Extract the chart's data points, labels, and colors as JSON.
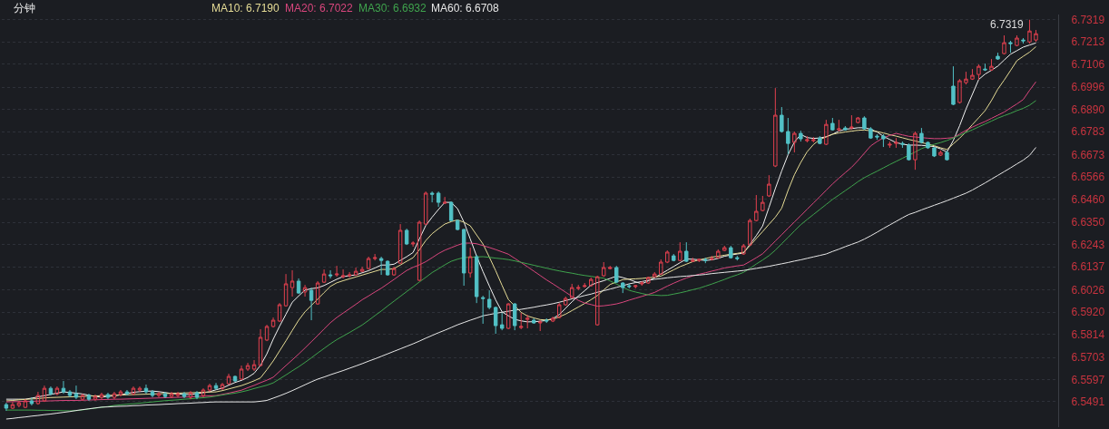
{
  "chart_data": {
    "type": "candlestick",
    "title": "分钟",
    "categories": [
      null,
      null,
      null,
      null,
      null,
      null,
      null,
      null,
      null,
      null,
      null,
      null,
      null,
      null,
      null,
      null,
      null,
      null,
      null,
      null,
      null,
      null,
      null,
      null,
      null,
      null,
      null,
      null,
      null,
      null,
      null,
      null,
      null,
      null,
      null,
      null,
      null,
      null,
      null,
      null,
      null,
      null,
      null,
      null,
      null,
      null,
      null,
      null,
      null,
      null,
      null,
      null,
      null,
      null,
      null,
      null,
      null,
      null,
      null,
      null,
      null,
      null,
      null,
      null,
      null,
      null,
      null,
      null,
      null,
      null,
      null,
      null,
      null,
      null,
      null,
      null,
      null,
      null,
      null,
      null,
      null,
      null,
      null,
      null,
      null,
      null,
      null,
      null,
      null,
      null,
      null,
      null,
      null,
      null,
      null,
      null,
      null,
      null,
      null,
      null,
      null,
      null,
      null,
      null,
      null,
      null,
      null,
      null,
      null,
      null,
      null,
      null,
      null,
      null,
      null,
      null,
      null,
      null,
      null,
      null,
      null,
      null,
      null,
      null,
      null,
      null,
      null,
      null,
      null,
      null,
      null,
      null,
      null,
      null,
      null,
      null,
      null,
      null,
      null,
      null,
      null,
      null,
      null,
      null,
      null,
      null,
      null,
      null,
      null,
      null,
      null,
      null,
      null,
      null,
      null,
      null,
      null,
      null,
      null,
      null,
      null,
      null,
      null
    ],
    "ohlc": [
      [
        6.5477,
        6.5486,
        6.5447,
        6.546
      ],
      [
        6.546,
        6.549,
        6.5456,
        6.5477
      ],
      [
        6.5473,
        6.5495,
        6.5464,
        6.5486
      ],
      [
        6.5464,
        6.5503,
        6.546,
        6.5495
      ],
      [
        6.5495,
        6.5512,
        6.5473,
        6.5482
      ],
      [
        6.5482,
        6.5538,
        6.5477,
        6.5521
      ],
      [
        6.5495,
        6.5568,
        6.549,
        6.5555
      ],
      [
        6.5555,
        6.5564,
        6.5521,
        6.5529
      ],
      [
        6.5529,
        6.5564,
        6.5521,
        6.5555
      ],
      [
        6.5555,
        6.559,
        6.5529,
        6.5538
      ],
      [
        6.5538,
        6.5547,
        6.5512,
        6.5521
      ],
      [
        6.5529,
        6.5568,
        6.5503,
        6.5512
      ],
      [
        6.5503,
        6.5529,
        6.5495,
        6.5521
      ],
      [
        6.5521,
        6.5529,
        6.5495,
        6.5503
      ],
      [
        6.5503,
        6.5525,
        6.5495,
        6.5516
      ],
      [
        6.5512,
        6.5534,
        6.5503,
        6.5525
      ],
      [
        6.5525,
        6.5534,
        6.5503,
        6.5512
      ],
      [
        6.5512,
        6.5538,
        6.5503,
        6.5529
      ],
      [
        6.5525,
        6.5547,
        6.5516,
        6.5538
      ],
      [
        6.5538,
        6.5547,
        6.5521,
        6.5529
      ],
      [
        6.5529,
        6.5564,
        6.5521,
        6.5555
      ],
      [
        6.5547,
        6.5564,
        6.5538,
        6.5555
      ],
      [
        6.5555,
        6.5573,
        6.5529,
        6.5538
      ],
      [
        6.5538,
        6.5547,
        6.5512,
        6.5521
      ],
      [
        6.5521,
        6.5538,
        6.5512,
        6.5529
      ],
      [
        6.5529,
        6.5538,
        6.5508,
        6.5516
      ],
      [
        6.5516,
        6.5538,
        6.5508,
        6.5529
      ],
      [
        6.5521,
        6.5538,
        6.5512,
        6.5529
      ],
      [
        6.5529,
        6.5538,
        6.5508,
        6.5516
      ],
      [
        6.5512,
        6.5542,
        6.5503,
        6.5534
      ],
      [
        6.5534,
        6.5542,
        6.5503,
        6.5512
      ],
      [
        6.5521,
        6.5555,
        6.5512,
        6.5547
      ],
      [
        6.5547,
        6.5577,
        6.5538,
        6.5568
      ],
      [
        6.5568,
        6.5581,
        6.5547,
        6.5555
      ],
      [
        6.5555,
        6.5581,
        6.5547,
        6.5573
      ],
      [
        6.5577,
        6.5625,
        6.5573,
        6.5612
      ],
      [
        6.5612,
        6.5616,
        6.5586,
        6.559
      ],
      [
        6.5599,
        6.5664,
        6.5595,
        6.5647
      ],
      [
        6.5647,
        6.5677,
        6.5638,
        6.5664
      ],
      [
        6.5647,
        6.569,
        6.5638,
        6.5668
      ],
      [
        6.5664,
        6.5838,
        6.566,
        6.5799
      ],
      [
        6.5786,
        6.5859,
        6.5781,
        6.5851
      ],
      [
        6.5851,
        6.5894,
        6.5846,
        6.5881
      ],
      [
        6.5877,
        6.5963,
        6.5872,
        6.5955
      ],
      [
        6.595,
        6.6102,
        6.5946,
        6.6055
      ],
      [
        6.6037,
        6.612,
        6.5994,
        6.6068
      ],
      [
        6.6068,
        6.6081,
        6.6007,
        6.6011
      ],
      [
        6.6016,
        6.605,
        6.5994,
        6.6037
      ],
      [
        6.6024,
        6.6037,
        6.5881,
        6.5976
      ],
      [
        6.5959,
        6.6068,
        6.5955,
        6.6059
      ],
      [
        6.6063,
        6.6124,
        6.6059,
        6.6102
      ],
      [
        6.6098,
        6.612,
        6.6081,
        6.6094
      ],
      [
        6.6098,
        6.6141,
        6.6089,
        6.6102
      ],
      [
        6.6089,
        6.6124,
        6.6081,
        6.6094
      ],
      [
        6.6094,
        6.6111,
        6.6085,
        6.6098
      ],
      [
        6.6098,
        6.6133,
        6.6094,
        6.6115
      ],
      [
        6.6115,
        6.6137,
        6.6111,
        6.6124
      ],
      [
        6.6128,
        6.6185,
        6.6124,
        6.6176
      ],
      [
        6.6176,
        6.6198,
        6.6167,
        6.618
      ],
      [
        6.6176,
        6.6185,
        6.6098,
        6.6167
      ],
      [
        6.6163,
        6.6167,
        6.6094,
        6.6098
      ],
      [
        6.6098,
        6.6137,
        6.6094,
        6.6128
      ],
      [
        6.6154,
        6.6341,
        6.615,
        6.6311
      ],
      [
        6.6311,
        6.6319,
        6.6241,
        6.6246
      ],
      [
        6.6246,
        6.6259,
        6.6233,
        6.625
      ],
      [
        6.6072,
        6.6358,
        6.6068,
        6.635
      ],
      [
        6.6341,
        6.6497,
        6.6337,
        6.6489
      ],
      [
        6.6489,
        6.6497,
        6.6445,
        6.6484
      ],
      [
        6.6489,
        6.6497,
        6.6423,
        6.6445
      ],
      [
        6.6441,
        6.6471,
        6.6437,
        6.6445
      ],
      [
        6.6445,
        6.645,
        6.6354,
        6.6358
      ],
      [
        6.6358,
        6.6363,
        6.6311,
        6.6315
      ],
      [
        6.6315,
        6.6319,
        6.6046,
        6.6107
      ],
      [
        6.6107,
        6.6228,
        6.6085,
        6.6185
      ],
      [
        6.6185,
        6.6194,
        6.5963,
        6.5994
      ],
      [
        6.5989,
        6.5998,
        6.5864,
        6.5985
      ],
      [
        6.5981,
        6.6024,
        6.5933,
        6.5942
      ],
      [
        6.5942,
        6.5946,
        6.5816,
        6.5855
      ],
      [
        6.5859,
        6.5916,
        6.5833,
        6.5842
      ],
      [
        6.5842,
        6.5963,
        6.5838,
        6.5959
      ],
      [
        6.5959,
        6.5963,
        6.5833,
        6.5855
      ],
      [
        6.5846,
        6.5916,
        6.5838,
        6.5851
      ],
      [
        6.5885,
        6.5907,
        6.5842,
        6.589
      ],
      [
        6.5881,
        6.589,
        6.5864,
        6.5868
      ],
      [
        6.5868,
        6.5881,
        6.5829,
        6.5872
      ],
      [
        6.5881,
        6.589,
        6.5868,
        6.5877
      ],
      [
        6.5877,
        6.5898,
        6.5872,
        6.589
      ],
      [
        6.5894,
        6.5963,
        6.589,
        6.5955
      ],
      [
        6.5955,
        6.5994,
        6.595,
        6.5985
      ],
      [
        6.5989,
        6.6055,
        6.5985,
        6.6037
      ],
      [
        6.6033,
        6.605,
        6.6024,
        6.6037
      ],
      [
        6.6042,
        6.6059,
        6.6037,
        6.6046
      ],
      [
        6.6046,
        6.6085,
        6.6042,
        6.6076
      ],
      [
        6.5859,
        6.6094,
        6.5855,
        6.6089
      ],
      [
        6.6094,
        6.6159,
        6.6089,
        6.6133
      ],
      [
        6.6128,
        6.6141,
        6.6124,
        6.6133
      ],
      [
        6.6133,
        6.6141,
        6.6059,
        6.6063
      ],
      [
        6.6059,
        6.6063,
        6.6011,
        6.6037
      ],
      [
        6.6046,
        6.6055,
        6.6033,
        6.6042
      ],
      [
        6.6042,
        6.605,
        6.6033,
        6.6046
      ],
      [
        6.6055,
        6.6068,
        6.6046,
        6.6059
      ],
      [
        6.6059,
        6.6089,
        6.6055,
        6.6085
      ],
      [
        6.6089,
        6.6111,
        6.6085,
        6.6102
      ],
      [
        6.6102,
        6.6172,
        6.6098,
        6.6159
      ],
      [
        6.6159,
        6.6215,
        6.6154,
        6.6207
      ],
      [
        6.6189,
        6.6198,
        6.6163,
        6.6167
      ],
      [
        6.6167,
        6.6254,
        6.6163,
        6.6211
      ],
      [
        6.6211,
        6.6254,
        6.6159,
        6.6163
      ],
      [
        6.6163,
        6.618,
        6.6159,
        6.6167
      ],
      [
        6.6167,
        6.6176,
        6.6159,
        6.6172
      ],
      [
        6.6172,
        6.618,
        6.6154,
        6.6167
      ],
      [
        6.6172,
        6.6189,
        6.6167,
        6.6176
      ],
      [
        6.618,
        6.622,
        6.6176,
        6.6211
      ],
      [
        6.6215,
        6.6237,
        6.6211,
        6.6228
      ],
      [
        6.6228,
        6.6237,
        6.6176,
        6.618
      ],
      [
        6.618,
        6.6189,
        6.6167,
        6.6176
      ],
      [
        6.6198,
        6.6246,
        6.6194,
        6.6237
      ],
      [
        6.6241,
        6.6367,
        6.6237,
        6.6358
      ],
      [
        6.6358,
        6.648,
        6.6354,
        6.6402
      ],
      [
        6.6406,
        6.6476,
        6.6402,
        6.6445
      ],
      [
        6.6476,
        6.6575,
        6.6471,
        6.6532
      ],
      [
        6.6619,
        6.6992,
        6.6614,
        6.6862
      ],
      [
        6.6862,
        6.6901,
        6.6779,
        6.6784
      ],
      [
        6.6784,
        6.6849,
        6.6675,
        6.6727
      ],
      [
        6.6732,
        6.6784,
        6.6684,
        6.6775
      ],
      [
        6.6775,
        6.6788,
        6.6736,
        6.6749
      ],
      [
        6.674,
        6.6762,
        6.6732,
        6.6745
      ],
      [
        6.674,
        6.6758,
        6.6732,
        6.6745
      ],
      [
        6.6753,
        6.6762,
        6.6723,
        6.6727
      ],
      [
        6.6723,
        6.684,
        6.6719,
        6.6818
      ],
      [
        6.6823,
        6.6849,
        6.6788,
        6.6792
      ],
      [
        6.6792,
        6.684,
        6.6784,
        6.6797
      ],
      [
        6.6801,
        6.681,
        6.6788,
        6.6792
      ],
      [
        6.6801,
        6.6862,
        6.6792,
        6.6805
      ],
      [
        6.6827,
        6.6853,
        6.6823,
        6.6849
      ],
      [
        6.6849,
        6.6857,
        6.6792,
        6.6797
      ],
      [
        6.6797,
        6.6805,
        6.6749,
        6.6753
      ],
      [
        6.6762,
        6.6771,
        6.6745,
        6.6758
      ],
      [
        6.6762,
        6.6771,
        6.671,
        6.6749
      ],
      [
        6.6719,
        6.6736,
        6.6706,
        6.6723
      ],
      [
        6.6727,
        6.6753,
        6.6706,
        6.6732
      ],
      [
        6.6727,
        6.6736,
        6.6706,
        6.6723
      ],
      [
        6.6719,
        6.6727,
        6.6645,
        6.6649
      ],
      [
        6.6649,
        6.6784,
        6.6601,
        6.6775
      ],
      [
        6.6775,
        6.6801,
        6.6727,
        6.6732
      ],
      [
        6.6732,
        6.6736,
        6.6701,
        6.6706
      ],
      [
        6.6706,
        6.671,
        6.6662,
        6.6667
      ],
      [
        6.6671,
        6.6693,
        6.6667,
        6.6684
      ],
      [
        6.6684,
        6.6693,
        6.6645,
        6.6649
      ],
      [
        6.7001,
        6.7096,
        6.691,
        6.6914
      ],
      [
        6.6923,
        6.7035,
        6.6918,
        6.7027
      ],
      [
        6.7018,
        6.707,
        6.7009,
        6.7035
      ],
      [
        6.7035,
        6.7083,
        6.7031,
        6.7053
      ],
      [
        6.7057,
        6.7105,
        6.7031,
        6.7096
      ],
      [
        6.7083,
        6.7109,
        6.7074,
        6.7079
      ],
      [
        6.7079,
        6.7131,
        6.7074,
        6.7096
      ],
      [
        6.7144,
        6.7161,
        6.7127,
        6.7131
      ],
      [
        6.7157,
        6.7244,
        6.7153,
        6.7209
      ],
      [
        6.7209,
        6.7218,
        6.7161,
        6.7205
      ],
      [
        6.7196,
        6.7244,
        6.7192,
        6.7231
      ],
      [
        6.7222,
        6.7231,
        6.7205,
        6.7218
      ],
      [
        6.7213,
        6.7319,
        6.7205,
        6.7265
      ],
      [
        6.7222,
        6.727,
        6.7213,
        6.7252
      ]
    ],
    "colors": [
      "#52c1c6",
      "#e2404f",
      "#e2404f",
      "#e2404f",
      "#52c1c6",
      "#e2404f",
      "#e2404f",
      "#52c1c6",
      "#e2404f",
      "#52c1c6",
      "#52c1c6",
      "#52c1c6",
      "#e2404f",
      "#52c1c6",
      "#e2404f",
      "#e2404f",
      "#52c1c6",
      "#e2404f",
      "#e2404f",
      "#52c1c6",
      "#e2404f",
      "#e2404f",
      "#52c1c6",
      "#52c1c6",
      "#e2404f",
      "#52c1c6",
      "#e2404f",
      "#e2404f",
      "#52c1c6",
      "#e2404f",
      "#52c1c6",
      "#e2404f",
      "#e2404f",
      "#52c1c6",
      "#e2404f",
      "#e2404f",
      "#52c1c6",
      "#e2404f",
      "#e2404f",
      "#e2404f",
      "#e2404f",
      "#e2404f",
      "#e2404f",
      "#e2404f",
      "#e2404f",
      "#e2404f",
      "#52c1c6",
      "#e2404f",
      "#52c1c6",
      "#e2404f",
      "#e2404f",
      "#52c1c6",
      "#e2404f",
      "#e2404f",
      "#e2404f",
      "#e2404f",
      "#e2404f",
      "#e2404f",
      "#e2404f",
      "#52c1c6",
      "#52c1c6",
      "#e2404f",
      "#e2404f",
      "#52c1c6",
      "#e2404f",
      "#e2404f",
      "#e2404f",
      "#52c1c6",
      "#52c1c6",
      "#e2404f",
      "#52c1c6",
      "#52c1c6",
      "#52c1c6",
      "#e2404f",
      "#52c1c6",
      "#52c1c6",
      "#52c1c6",
      "#52c1c6",
      "#52c1c6",
      "#e2404f",
      "#52c1c6",
      "#e2404f",
      "#e2404f",
      "#52c1c6",
      "#e2404f",
      "#52c1c6",
      "#e2404f",
      "#e2404f",
      "#e2404f",
      "#e2404f",
      "#e2404f",
      "#e2404f",
      "#e2404f",
      "#e2404f",
      "#e2404f",
      "#e2404f",
      "#52c1c6",
      "#52c1c6",
      "#52c1c6",
      "#e2404f",
      "#e2404f",
      "#e2404f",
      "#e2404f",
      "#e2404f",
      "#e2404f",
      "#52c1c6",
      "#e2404f",
      "#52c1c6",
      "#e2404f",
      "#e2404f",
      "#52c1c6",
      "#e2404f",
      "#e2404f",
      "#e2404f",
      "#52c1c6",
      "#52c1c6",
      "#e2404f",
      "#e2404f",
      "#e2404f",
      "#e2404f",
      "#e2404f",
      "#e2404f",
      "#52c1c6",
      "#52c1c6",
      "#e2404f",
      "#52c1c6",
      "#e2404f",
      "#e2404f",
      "#52c1c6",
      "#e2404f",
      "#52c1c6",
      "#e2404f",
      "#52c1c6",
      "#e2404f",
      "#e2404f",
      "#52c1c6",
      "#52c1c6",
      "#52c1c6",
      "#52c1c6",
      "#e2404f",
      "#e2404f",
      "#52c1c6",
      "#52c1c6",
      "#e2404f",
      "#52c1c6",
      "#52c1c6",
      "#52c1c6",
      "#e2404f",
      "#52c1c6",
      "#52c1c6",
      "#e2404f",
      "#e2404f",
      "#e2404f",
      "#e2404f",
      "#52c1c6",
      "#e2404f",
      "#52c1c6",
      "#e2404f",
      "#52c1c6",
      "#e2404f",
      "#52c1c6",
      "#e2404f",
      "#e2404f"
    ],
    "series": [
      {
        "type": "line",
        "color": "#f2f2f2",
        "values": [
          6.5503,
          6.5503,
          6.5503,
          6.5503,
          6.5508,
          6.5514,
          6.552,
          6.5526,
          6.5532,
          6.5538,
          6.5535,
          6.5532,
          6.5528,
          6.5522,
          6.5516,
          6.5513,
          6.5516,
          6.5519,
          6.5524,
          6.553,
          6.5536,
          6.5539,
          6.5541,
          6.5542,
          6.5539,
          6.5535,
          6.553,
          6.5528,
          6.5526,
          6.5525,
          6.553,
          6.5534,
          6.5539,
          6.5548,
          6.5556,
          6.557,
          6.5583,
          6.5593,
          6.5607,
          6.5627,
          6.5665,
          6.572,
          6.579,
          6.5852,
          6.5909,
          6.5967,
          6.5997,
          6.6025,
          6.6032,
          6.6036,
          6.6047,
          6.6062,
          6.6077,
          6.609,
          6.6094,
          6.6098,
          6.6108,
          6.6118,
          6.6131,
          6.6145,
          6.6145,
          6.6149,
          6.6167,
          6.6185,
          6.6205,
          6.627,
          6.6334,
          6.6374,
          6.6411,
          6.6445,
          6.6445,
          6.6415,
          6.6351,
          6.627,
          6.6188,
          6.6114,
          6.6045,
          6.5978,
          6.5921,
          6.5902,
          6.5885,
          6.5878,
          6.5873,
          6.5874,
          6.5876,
          6.588,
          6.5889,
          6.5908,
          6.5938,
          6.5969,
          6.5997,
          6.6022,
          6.6049,
          6.6061,
          6.607,
          6.6081,
          6.6092,
          6.6085,
          6.6076,
          6.6065,
          6.6055,
          6.6069,
          6.6084,
          6.6102,
          6.612,
          6.6138,
          6.6156,
          6.6174,
          6.6173,
          6.617,
          6.6167,
          6.617,
          6.6177,
          6.6187,
          6.6193,
          6.6198,
          6.6202,
          6.6244,
          6.6286,
          6.6332,
          6.6421,
          6.6511,
          6.6595,
          6.6673,
          6.6734,
          6.677,
          6.6755,
          6.6751,
          6.6753,
          6.6759,
          6.6771,
          6.6786,
          6.6795,
          6.6798,
          6.6802,
          6.6802,
          6.6795,
          6.6782,
          6.6761,
          6.6746,
          6.6731,
          6.6724,
          6.6719,
          6.6719,
          6.6718,
          6.6715,
          6.6712,
          6.6701,
          6.6686,
          6.6741,
          6.6812,
          6.6892,
          6.6962,
          6.7033,
          6.7059,
          6.7077,
          6.7097,
          6.7126,
          6.7154,
          6.7171,
          6.7188,
          6.7198,
          6.7208
        ]
      },
      {
        "type": "line",
        "name": "MA10: 6.7190",
        "color": "#e6dc96",
        "values": [
          6.5495,
          6.5497,
          6.55,
          6.5502,
          6.5504,
          6.5506,
          6.5509,
          6.5511,
          6.5512,
          6.5513,
          6.5514,
          6.5515,
          6.5516,
          6.5518,
          6.5519,
          6.5519,
          6.5521,
          6.5522,
          6.5523,
          6.5524,
          6.5525,
          6.5526,
          6.5527,
          6.5528,
          6.5529,
          6.553,
          6.5531,
          6.5532,
          6.5533,
          6.5534,
          6.5535,
          6.5536,
          6.5537,
          6.5538,
          6.5544,
          6.5552,
          6.556,
          6.5568,
          6.5579,
          6.5591,
          6.5605,
          6.5644,
          6.5686,
          6.5734,
          6.5782,
          6.5832,
          6.5881,
          6.5921,
          6.5952,
          6.5982,
          6.6013,
          6.6043,
          6.606,
          6.607,
          6.6079,
          6.6088,
          6.6097,
          6.6106,
          6.6115,
          6.6124,
          6.6124,
          6.6128,
          6.6145,
          6.6163,
          6.618,
          6.6218,
          6.6262,
          6.6295,
          6.6319,
          6.6341,
          6.6353,
          6.6361,
          6.635,
          6.6333,
          6.6289,
          6.6246,
          6.6183,
          6.6118,
          6.6048,
          6.598,
          6.5949,
          6.5919,
          6.5901,
          6.5892,
          6.5884,
          6.5882,
          6.5885,
          6.5897,
          6.591,
          6.5927,
          6.5944,
          6.5961,
          6.5979,
          6.5999,
          6.6026,
          6.6052,
          6.6064,
          6.6075,
          6.6078,
          6.6079,
          6.6081,
          6.6084,
          6.6087,
          6.6092,
          6.6107,
          6.6122,
          6.6137,
          6.6149,
          6.6161,
          6.617,
          6.6176,
          6.6183,
          6.6187,
          6.6192,
          6.6197,
          6.6201,
          6.6206,
          6.6237,
          6.6272,
          6.6305,
          6.634,
          6.6374,
          6.6417,
          6.6502,
          6.6577,
          6.6636,
          6.6687,
          6.6722,
          6.6746,
          6.6758,
          6.6771,
          6.6777,
          6.6782,
          6.6786,
          6.679,
          6.6791,
          6.6788,
          6.6784,
          6.6777,
          6.6769,
          6.6762,
          6.6754,
          6.6746,
          6.6739,
          6.6731,
          6.6724,
          6.6716,
          6.6706,
          6.6698,
          6.6725,
          6.6752,
          6.6783,
          6.6817,
          6.685,
          6.6884,
          6.6932,
          6.6987,
          6.703,
          6.7076,
          6.7123,
          6.7144,
          6.7164,
          6.719
        ]
      },
      {
        "type": "line",
        "name": "MA20: 6.7022",
        "color": "#d9467d",
        "values": [
          6.549,
          6.5491,
          6.5492,
          6.5493,
          6.5493,
          6.5494,
          6.5494,
          6.5495,
          6.5496,
          6.5497,
          6.5497,
          6.5497,
          6.5498,
          6.5499,
          6.55,
          6.5501,
          6.5502,
          6.5503,
          6.5503,
          6.5504,
          6.5505,
          6.5506,
          6.5507,
          6.5508,
          6.5509,
          6.551,
          6.5511,
          6.5512,
          6.5513,
          6.5514,
          6.5516,
          6.5517,
          6.5519,
          6.552,
          6.5526,
          6.5532,
          6.5539,
          6.5546,
          6.5558,
          6.5569,
          6.5582,
          6.5594,
          6.5608,
          6.5636,
          6.5664,
          6.5691,
          6.5719,
          6.5748,
          6.5778,
          6.5808,
          6.5839,
          6.5869,
          6.5894,
          6.5915,
          6.5936,
          6.5957,
          6.5979,
          6.5997,
          6.6016,
          6.6034,
          6.6055,
          6.6076,
          6.6098,
          6.6119,
          6.6134,
          6.6146,
          6.6161,
          6.618,
          6.62,
          6.6216,
          6.6228,
          6.624,
          6.625,
          6.625,
          6.6247,
          6.6238,
          6.6229,
          6.6219,
          6.6208,
          6.6197,
          6.6177,
          6.6157,
          6.6137,
          6.6116,
          6.6095,
          6.6074,
          6.6055,
          6.6035,
          6.6015,
          6.5995,
          6.5976,
          6.5963,
          6.5956,
          6.5948,
          6.595,
          6.5954,
          6.5959,
          6.5967,
          6.5977,
          6.5986,
          6.5995,
          6.6004,
          6.6014,
          6.6029,
          6.6044,
          6.6058,
          6.6071,
          6.6083,
          6.6093,
          6.6101,
          6.6108,
          6.6116,
          6.6123,
          6.6131,
          6.6136,
          6.6141,
          6.6145,
          6.6162,
          6.618,
          6.6199,
          6.6229,
          6.626,
          6.629,
          6.6321,
          6.6351,
          6.6381,
          6.6412,
          6.6442,
          6.6472,
          6.6503,
          6.6533,
          6.6561,
          6.6587,
          6.6613,
          6.6645,
          6.668,
          6.6715,
          6.6736,
          6.6754,
          6.6765,
          6.6775,
          6.6768,
          6.6761,
          6.6758,
          6.6755,
          6.6752,
          6.675,
          6.675,
          6.6752,
          6.6755,
          6.6772,
          6.679,
          6.6805,
          6.6819,
          6.6832,
          6.6847,
          6.6862,
          6.6877,
          6.6897,
          6.6916,
          6.6937,
          6.6981,
          6.7022
        ]
      },
      {
        "type": "line",
        "name": "MA30: 6.6932",
        "color": "#3fa34d",
        "values": [
          6.5451,
          6.5451,
          6.5451,
          6.5451,
          6.5451,
          6.545,
          6.545,
          6.5449,
          6.5449,
          6.5448,
          6.5447,
          6.5448,
          6.5452,
          6.5456,
          6.546,
          6.5464,
          6.5468,
          6.5473,
          6.5476,
          6.5479,
          6.5481,
          6.5484,
          6.5487,
          6.549,
          6.5493,
          6.5496,
          6.5498,
          6.55,
          6.5503,
          6.5505,
          6.5508,
          6.551,
          6.5513,
          6.5518,
          6.5523,
          6.5528,
          6.5532,
          6.5538,
          6.5545,
          6.5554,
          6.5562,
          6.557,
          6.5581,
          6.56,
          6.5619,
          6.5639,
          6.5658,
          6.5679,
          6.5701,
          6.5724,
          6.5746,
          6.5768,
          6.5788,
          6.5805,
          6.5822,
          6.584,
          6.5858,
          6.588,
          6.5903,
          6.5925,
          6.5949,
          6.5972,
          6.5995,
          6.6018,
          6.6041,
          6.6064,
          6.6086,
          6.6109,
          6.6127,
          6.6146,
          6.6163,
          6.6173,
          6.6181,
          6.6182,
          6.6184,
          6.6185,
          6.6182,
          6.6178,
          6.6175,
          6.6171,
          6.6165,
          6.6158,
          6.6151,
          6.6144,
          6.6137,
          6.613,
          6.6123,
          6.6117,
          6.6111,
          6.6106,
          6.61,
          6.6095,
          6.6091,
          6.6086,
          6.6082,
          6.6069,
          6.6054,
          6.6039,
          6.6024,
          6.6016,
          6.6009,
          6.6002,
          6.6001,
          6.5999,
          6.6,
          6.6006,
          6.6012,
          6.6019,
          6.6027,
          6.6034,
          6.6044,
          6.6054,
          6.6065,
          6.6076,
          6.6088,
          6.6098,
          6.611,
          6.6129,
          6.615,
          6.6169,
          6.619,
          6.6216,
          6.6247,
          6.6277,
          6.6308,
          6.6338,
          6.6363,
          6.6387,
          6.6411,
          6.6435,
          6.6459,
          6.648,
          6.6501,
          6.6522,
          6.6544,
          6.6563,
          6.6579,
          6.6594,
          6.661,
          6.6626,
          6.6641,
          6.6656,
          6.6671,
          6.6686,
          6.6702,
          6.6714,
          6.6723,
          6.6731,
          6.6741,
          6.6753,
          6.6766,
          6.6779,
          6.6792,
          6.6806,
          6.682,
          6.6834,
          6.6848,
          6.686,
          6.6871,
          6.6884,
          6.6895,
          6.691,
          6.6932
        ]
      },
      {
        "type": "line",
        "name": "MA60: 6.6708",
        "color": "#e8e8e8",
        "values": [
          6.5408,
          6.5411,
          6.5415,
          6.5418,
          6.5422,
          6.5425,
          6.5429,
          6.5432,
          6.5436,
          6.544,
          6.5444,
          6.5449,
          6.5453,
          6.5457,
          6.5461,
          6.5465,
          6.5466,
          6.5468,
          6.5469,
          6.547,
          6.5472,
          6.5473,
          6.5475,
          6.5476,
          6.5477,
          6.5479,
          6.548,
          6.5482,
          6.5483,
          6.5484,
          6.5486,
          6.5487,
          6.5489,
          6.549,
          6.549,
          6.549,
          6.549,
          6.549,
          6.549,
          6.549,
          6.5493,
          6.5497,
          6.5508,
          6.5519,
          6.5531,
          6.5544,
          6.5558,
          6.5572,
          6.5586,
          6.5599,
          6.5609,
          6.562,
          6.563,
          6.564,
          6.5651,
          6.5662,
          6.5673,
          6.5685,
          6.5696,
          6.5708,
          6.572,
          6.5732,
          6.5744,
          6.5756,
          6.5768,
          6.5781,
          6.5795,
          6.5808,
          6.5821,
          6.5833,
          6.5846,
          6.5859,
          6.587,
          6.5881,
          6.5891,
          6.5902,
          6.5908,
          6.5914,
          6.5919,
          6.5924,
          6.5929,
          6.5933,
          6.5938,
          6.5943,
          6.5949,
          6.5954,
          6.596,
          6.5967,
          6.5975,
          6.5983,
          6.5991,
          6.5999,
          6.6006,
          6.6015,
          6.6022,
          6.603,
          6.6038,
          6.6046,
          6.6055,
          6.6061,
          6.6066,
          6.6072,
          6.6077,
          6.608,
          6.6084,
          6.6087,
          6.609,
          6.6092,
          6.6095,
          6.6097,
          6.61,
          6.6104,
          6.6107,
          6.611,
          6.6113,
          6.6116,
          6.6119,
          6.6124,
          6.6129,
          6.6134,
          6.6139,
          6.6145,
          6.6151,
          6.6157,
          6.6164,
          6.617,
          6.6177,
          6.6184,
          6.6191,
          6.6198,
          6.621,
          6.6221,
          6.6233,
          6.6244,
          6.6255,
          6.6269,
          6.6285,
          6.6302,
          6.632,
          6.6337,
          6.6354,
          6.6371,
          6.6387,
          6.6397,
          6.6409,
          6.642,
          6.6431,
          6.6442,
          6.6453,
          6.6465,
          6.6477,
          6.6489,
          6.6504,
          6.6521,
          6.6538,
          6.6556,
          6.6574,
          6.6592,
          6.661,
          6.6629,
          6.6647,
          6.667,
          6.6708
        ]
      }
    ],
    "ylim": [
      6.5369,
      6.7344
    ],
    "yticks": [
      6.7319,
      6.7213,
      6.7106,
      6.6996,
      {
        "value": 6.689,
        "label": "6.6890"
      },
      6.6783,
      6.6673,
      6.6566,
      {
        "value": 6.646,
        "label": "6.6460"
      },
      {
        "value": 6.635,
        "label": "6.6350"
      },
      6.6243,
      6.6137,
      6.6026,
      {
        "value": 6.592,
        "label": "6.5920"
      },
      6.5814,
      6.5703,
      6.5597,
      6.5491
    ],
    "grid": "y",
    "legend": "top left",
    "tick_labels": "y",
    "annotations": [
      "6.7319"
    ]
  }
}
